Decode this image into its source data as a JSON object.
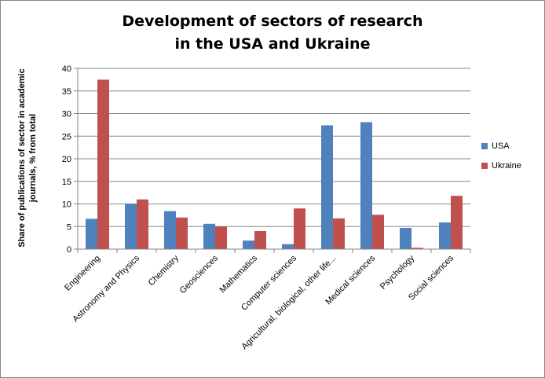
{
  "chart_data": {
    "type": "bar",
    "title": [
      "Development of sectors of research",
      "in the USA and Ukraine"
    ],
    "ylabel": "Share of publications  of sector in academic journals, % from total",
    "xlabel": "",
    "ylim": [
      0,
      40
    ],
    "yticks": [
      0,
      5,
      10,
      15,
      20,
      25,
      30,
      35,
      40
    ],
    "grid": true,
    "legend_position": "right",
    "categories": [
      "Engineering",
      "Astronomy and Physics",
      "Chemistry",
      "Geosciences",
      "Mathematics",
      "Computer sciences",
      "Agricultural, biological, other life...",
      "Medical sciences",
      "Psychology",
      "Social sciences"
    ],
    "series": [
      {
        "name": "USA",
        "color": "#4F81BD",
        "values": [
          6.7,
          10.0,
          8.4,
          5.6,
          1.9,
          1.1,
          27.4,
          28.1,
          4.7,
          5.9
        ]
      },
      {
        "name": "Ukraine",
        "color": "#C0504D",
        "values": [
          37.5,
          11.0,
          7.0,
          5.0,
          4.0,
          9.0,
          6.8,
          7.6,
          0.3,
          11.8
        ]
      }
    ]
  }
}
